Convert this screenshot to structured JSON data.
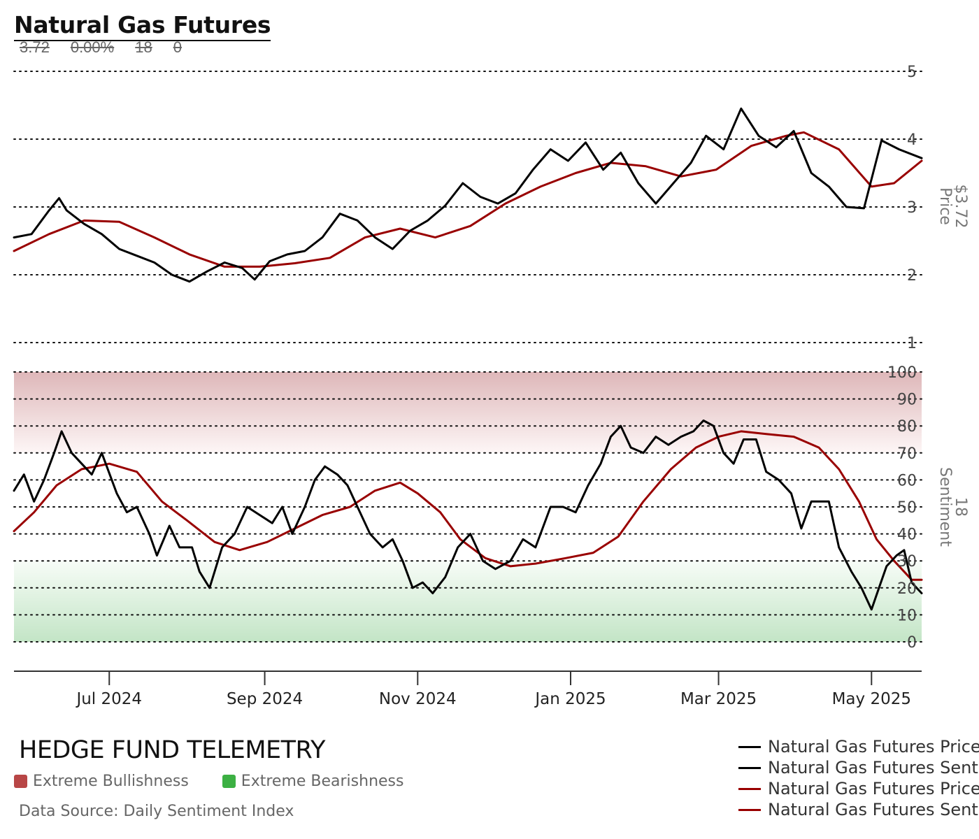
{
  "header": {
    "title": "Natural Gas Futures",
    "stats": [
      "3.72",
      "0.00%",
      "18",
      "0"
    ]
  },
  "footer": {
    "brand": "HEDGE FUND TELEMETRY",
    "zones": [
      {
        "label": "Extreme Bullishness",
        "color": "#b84646"
      },
      {
        "label": "Extreme Bearishness",
        "color": "#3cb043"
      }
    ],
    "source": "Data Source: Daily Sentiment Index"
  },
  "legend": [
    {
      "label": "Natural Gas Futures Price",
      "color": "#000000"
    },
    {
      "label": "Natural Gas Futures Sentiment",
      "color": "#000000"
    },
    {
      "label": "Natural Gas Futures Price SMA",
      "color": "#990000"
    },
    {
      "label": "Natural Gas Futures Sentiment SMA",
      "color": "#990000"
    }
  ],
  "chart_data": {
    "type": "line",
    "x_ticks": [
      {
        "label": "Jul 2024",
        "date": "2024-07-01"
      },
      {
        "label": "Sep 2024",
        "date": "2024-09-01"
      },
      {
        "label": "Nov 2024",
        "date": "2024-11-01"
      },
      {
        "label": "Jan 2025",
        "date": "2025-01-01"
      },
      {
        "label": "Mar 2025",
        "date": "2025-03-01"
      },
      {
        "label": "May 2025",
        "date": "2025-05-01"
      }
    ],
    "x_range": [
      "2024-05-24",
      "2025-05-21"
    ],
    "price_panel": {
      "axis_label": "Price",
      "last_value_label": "$3.72",
      "ylim": [
        1,
        5
      ],
      "yticks": [
        "1",
        "2",
        "3",
        "4",
        "5"
      ],
      "grid": true,
      "series": [
        {
          "name": "Natural Gas Futures Price",
          "color": "#000000",
          "points": [
            [
              "2024-05-24",
              2.55
            ],
            [
              "2024-05-31",
              2.6
            ],
            [
              "2024-06-07",
              2.95
            ],
            [
              "2024-06-11",
              3.13
            ],
            [
              "2024-06-14",
              2.95
            ],
            [
              "2024-06-21",
              2.75
            ],
            [
              "2024-06-28",
              2.6
            ],
            [
              "2024-07-05",
              2.38
            ],
            [
              "2024-07-12",
              2.28
            ],
            [
              "2024-07-19",
              2.18
            ],
            [
              "2024-07-26",
              2.0
            ],
            [
              "2024-08-02",
              1.9
            ],
            [
              "2024-08-09",
              2.05
            ],
            [
              "2024-08-16",
              2.18
            ],
            [
              "2024-08-23",
              2.1
            ],
            [
              "2024-08-28",
              1.93
            ],
            [
              "2024-09-03",
              2.2
            ],
            [
              "2024-09-10",
              2.3
            ],
            [
              "2024-09-17",
              2.35
            ],
            [
              "2024-09-24",
              2.55
            ],
            [
              "2024-10-01",
              2.9
            ],
            [
              "2024-10-08",
              2.8
            ],
            [
              "2024-10-15",
              2.55
            ],
            [
              "2024-10-22",
              2.38
            ],
            [
              "2024-10-29",
              2.65
            ],
            [
              "2024-11-05",
              2.8
            ],
            [
              "2024-11-12",
              3.02
            ],
            [
              "2024-11-19",
              3.35
            ],
            [
              "2024-11-26",
              3.15
            ],
            [
              "2024-12-03",
              3.05
            ],
            [
              "2024-12-10",
              3.2
            ],
            [
              "2024-12-17",
              3.55
            ],
            [
              "2024-12-24",
              3.85
            ],
            [
              "2024-12-31",
              3.68
            ],
            [
              "2025-01-07",
              3.95
            ],
            [
              "2025-01-14",
              3.55
            ],
            [
              "2025-01-21",
              3.8
            ],
            [
              "2025-01-28",
              3.35
            ],
            [
              "2025-02-04",
              3.05
            ],
            [
              "2025-02-11",
              3.35
            ],
            [
              "2025-02-18",
              3.65
            ],
            [
              "2025-02-24",
              4.05
            ],
            [
              "2025-03-03",
              3.85
            ],
            [
              "2025-03-10",
              4.45
            ],
            [
              "2025-03-17",
              4.05
            ],
            [
              "2025-03-24",
              3.88
            ],
            [
              "2025-03-31",
              4.12
            ],
            [
              "2025-04-07",
              3.5
            ],
            [
              "2025-04-14",
              3.3
            ],
            [
              "2025-04-21",
              3.0
            ],
            [
              "2025-04-28",
              2.98
            ],
            [
              "2025-05-05",
              3.98
            ],
            [
              "2025-05-12",
              3.85
            ],
            [
              "2025-05-21",
              3.72
            ]
          ]
        },
        {
          "name": "Natural Gas Futures Price SMA",
          "color": "#990000",
          "points": [
            [
              "2024-05-24",
              2.35
            ],
            [
              "2024-06-07",
              2.6
            ],
            [
              "2024-06-21",
              2.8
            ],
            [
              "2024-07-05",
              2.78
            ],
            [
              "2024-07-19",
              2.55
            ],
            [
              "2024-08-02",
              2.3
            ],
            [
              "2024-08-16",
              2.12
            ],
            [
              "2024-08-30",
              2.12
            ],
            [
              "2024-09-13",
              2.17
            ],
            [
              "2024-09-27",
              2.25
            ],
            [
              "2024-10-11",
              2.55
            ],
            [
              "2024-10-25",
              2.68
            ],
            [
              "2024-11-08",
              2.55
            ],
            [
              "2024-11-22",
              2.72
            ],
            [
              "2024-12-06",
              3.05
            ],
            [
              "2024-12-20",
              3.3
            ],
            [
              "2025-01-03",
              3.5
            ],
            [
              "2025-01-17",
              3.65
            ],
            [
              "2025-01-31",
              3.6
            ],
            [
              "2025-02-14",
              3.45
            ],
            [
              "2025-02-28",
              3.55
            ],
            [
              "2025-03-14",
              3.9
            ],
            [
              "2025-03-28",
              4.05
            ],
            [
              "2025-04-04",
              4.1
            ],
            [
              "2025-04-18",
              3.85
            ],
            [
              "2025-05-01",
              3.3
            ],
            [
              "2025-05-10",
              3.35
            ],
            [
              "2025-05-21",
              3.68
            ]
          ]
        }
      ]
    },
    "sentiment_panel": {
      "axis_label": "Sentiment",
      "last_value_label": "18",
      "ylim": [
        0,
        100
      ],
      "yticks": [
        "0",
        "10",
        "20",
        "30",
        "40",
        "50",
        "60",
        "70",
        "80",
        "90",
        "100"
      ],
      "extreme_bullish_zone": [
        70,
        100
      ],
      "extreme_bearish_zone": [
        0,
        30
      ],
      "grid": true,
      "series": [
        {
          "name": "Natural Gas Futures Sentiment",
          "color": "#000000",
          "points": [
            [
              "2024-05-24",
              56
            ],
            [
              "2024-05-28",
              62
            ],
            [
              "2024-06-01",
              52
            ],
            [
              "2024-06-05",
              60
            ],
            [
              "2024-06-09",
              70
            ],
            [
              "2024-06-12",
              78
            ],
            [
              "2024-06-16",
              70
            ],
            [
              "2024-06-20",
              66
            ],
            [
              "2024-06-24",
              62
            ],
            [
              "2024-06-28",
              70
            ],
            [
              "2024-07-04",
              55
            ],
            [
              "2024-07-08",
              48
            ],
            [
              "2024-07-12",
              50
            ],
            [
              "2024-07-17",
              40
            ],
            [
              "2024-07-20",
              32
            ],
            [
              "2024-07-25",
              43
            ],
            [
              "2024-07-29",
              35
            ],
            [
              "2024-08-03",
              35
            ],
            [
              "2024-08-06",
              26
            ],
            [
              "2024-08-10",
              20
            ],
            [
              "2024-08-15",
              35
            ],
            [
              "2024-08-20",
              40
            ],
            [
              "2024-08-25",
              50
            ],
            [
              "2024-08-30",
              47
            ],
            [
              "2024-09-04",
              44
            ],
            [
              "2024-09-08",
              50
            ],
            [
              "2024-09-12",
              40
            ],
            [
              "2024-09-17",
              50
            ],
            [
              "2024-09-21",
              60
            ],
            [
              "2024-09-25",
              65
            ],
            [
              "2024-09-30",
              62
            ],
            [
              "2024-10-04",
              58
            ],
            [
              "2024-10-08",
              50
            ],
            [
              "2024-10-13",
              40
            ],
            [
              "2024-10-18",
              35
            ],
            [
              "2024-10-22",
              38
            ],
            [
              "2024-10-26",
              30
            ],
            [
              "2024-10-30",
              20
            ],
            [
              "2024-11-03",
              22
            ],
            [
              "2024-11-07",
              18
            ],
            [
              "2024-11-12",
              24
            ],
            [
              "2024-11-17",
              35
            ],
            [
              "2024-11-22",
              40
            ],
            [
              "2024-11-27",
              30
            ],
            [
              "2024-12-02",
              27
            ],
            [
              "2024-12-08",
              30
            ],
            [
              "2024-12-13",
              38
            ],
            [
              "2024-12-18",
              35
            ],
            [
              "2024-12-24",
              50
            ],
            [
              "2024-12-29",
              50
            ],
            [
              "2025-01-03",
              48
            ],
            [
              "2025-01-08",
              58
            ],
            [
              "2025-01-13",
              66
            ],
            [
              "2025-01-17",
              76
            ],
            [
              "2025-01-21",
              80
            ],
            [
              "2025-01-25",
              72
            ],
            [
              "2025-01-30",
              70
            ],
            [
              "2025-02-04",
              76
            ],
            [
              "2025-02-09",
              73
            ],
            [
              "2025-02-14",
              76
            ],
            [
              "2025-02-19",
              78
            ],
            [
              "2025-02-23",
              82
            ],
            [
              "2025-02-27",
              80
            ],
            [
              "2025-03-03",
              70
            ],
            [
              "2025-03-07",
              66
            ],
            [
              "2025-03-11",
              75
            ],
            [
              "2025-03-16",
              75
            ],
            [
              "2025-03-20",
              63
            ],
            [
              "2025-03-25",
              60
            ],
            [
              "2025-03-30",
              55
            ],
            [
              "2025-04-03",
              42
            ],
            [
              "2025-04-07",
              52
            ],
            [
              "2025-04-14",
              52
            ],
            [
              "2025-04-18",
              35
            ],
            [
              "2025-04-23",
              26
            ],
            [
              "2025-04-27",
              20
            ],
            [
              "2025-05-01",
              12
            ],
            [
              "2025-05-04",
              20
            ],
            [
              "2025-05-07",
              28
            ],
            [
              "2025-05-11",
              32
            ],
            [
              "2025-05-14",
              34
            ],
            [
              "2025-05-17",
              22
            ],
            [
              "2025-05-21",
              18
            ]
          ]
        },
        {
          "name": "Natural Gas Futures Sentiment SMA",
          "color": "#990000",
          "points": [
            [
              "2024-05-24",
              41
            ],
            [
              "2024-06-01",
              48
            ],
            [
              "2024-06-10",
              58
            ],
            [
              "2024-06-20",
              64
            ],
            [
              "2024-07-01",
              66
            ],
            [
              "2024-07-12",
              63
            ],
            [
              "2024-07-22",
              52
            ],
            [
              "2024-08-01",
              45
            ],
            [
              "2024-08-12",
              37
            ],
            [
              "2024-08-22",
              34
            ],
            [
              "2024-09-02",
              37
            ],
            [
              "2024-09-13",
              42
            ],
            [
              "2024-09-24",
              47
            ],
            [
              "2024-10-05",
              50
            ],
            [
              "2024-10-15",
              56
            ],
            [
              "2024-10-25",
              59
            ],
            [
              "2024-11-01",
              55
            ],
            [
              "2024-11-10",
              48
            ],
            [
              "2024-11-18",
              38
            ],
            [
              "2024-11-28",
              31
            ],
            [
              "2024-12-08",
              28
            ],
            [
              "2024-12-18",
              29
            ],
            [
              "2024-12-30",
              31
            ],
            [
              "2025-01-10",
              33
            ],
            [
              "2025-01-20",
              39
            ],
            [
              "2025-01-30",
              52
            ],
            [
              "2025-02-10",
              64
            ],
            [
              "2025-02-20",
              72
            ],
            [
              "2025-03-01",
              76
            ],
            [
              "2025-03-10",
              78
            ],
            [
              "2025-03-20",
              77
            ],
            [
              "2025-03-31",
              76
            ],
            [
              "2025-04-10",
              72
            ],
            [
              "2025-04-18",
              64
            ],
            [
              "2025-04-26",
              52
            ],
            [
              "2025-05-03",
              38
            ],
            [
              "2025-05-10",
              30
            ],
            [
              "2025-05-17",
              23
            ],
            [
              "2025-05-21",
              23
            ]
          ]
        }
      ]
    }
  }
}
